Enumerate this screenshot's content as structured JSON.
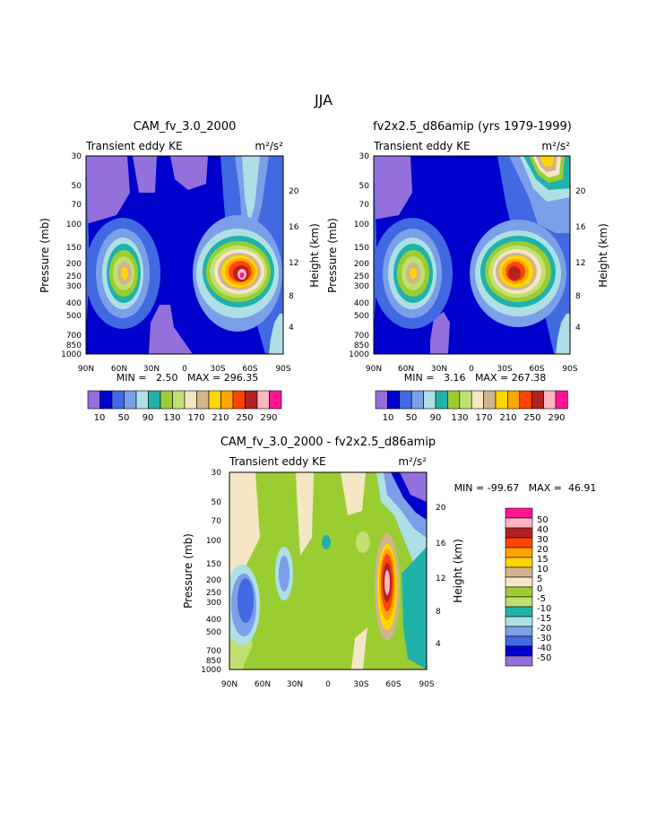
{
  "page_title": "JJA",
  "colors": {
    "main_scale": [
      "#9370db",
      "#0000cd",
      "#4169e1",
      "#7b9fe8",
      "#aedfe5",
      "#20b2aa",
      "#9acd32",
      "#c0e070",
      "#f5e6c4",
      "#d2b48c",
      "#ffd700",
      "#ffa500",
      "#ff4500",
      "#b22222",
      "#ffb6c1",
      "#ff1493"
    ],
    "diff_scale": [
      "#ff1493",
      "#ffb6c1",
      "#b22222",
      "#ff4500",
      "#ffa500",
      "#ffd700",
      "#d2b48c",
      "#f5e6c4",
      "#9acd32",
      "#c0e070",
      "#20b2aa",
      "#aedfe5",
      "#7b9fe8",
      "#4169e1",
      "#0000cd",
      "#9370db"
    ]
  },
  "chart_data": [
    {
      "type": "heatmap",
      "title": "CAM_fv_3.0_2000",
      "subtitle": "Transient eddy KE",
      "units": "m²/s²",
      "xlabel": "",
      "ylabel": "Pressure (mb)",
      "ylabel_right": "Height (km)",
      "x_ticks": [
        "90N",
        "60N",
        "30N",
        "0",
        "30S",
        "60S",
        "90S"
      ],
      "y_ticks": [
        "30",
        "50",
        "70",
        "100",
        "150",
        "200",
        "250",
        "300",
        "400",
        "500",
        "700",
        "850",
        "1000"
      ],
      "y_right_ticks": [
        "20",
        "16",
        "12",
        "8",
        "4"
      ],
      "stats": "MIN =   2.50   MAX = 296.35",
      "colorbar_labels": [
        "10",
        "50",
        "90",
        "130",
        "170",
        "210",
        "250",
        "290"
      ]
    },
    {
      "type": "heatmap",
      "title": "fv2x2.5_d86amip (yrs 1979-1999)",
      "subtitle": "Transient eddy KE",
      "units": "m²/s²",
      "xlabel": "",
      "ylabel": "Pressure (mb)",
      "ylabel_right": "Height (km)",
      "x_ticks": [
        "90N",
        "60N",
        "30N",
        "0",
        "30S",
        "60S",
        "90S"
      ],
      "y_ticks": [
        "30",
        "50",
        "70",
        "100",
        "150",
        "200",
        "250",
        "300",
        "400",
        "500",
        "700",
        "850",
        "1000"
      ],
      "y_right_ticks": [
        "20",
        "16",
        "12",
        "8",
        "4"
      ],
      "stats": "MIN =   3.16   MAX = 267.38",
      "colorbar_labels": [
        "10",
        "50",
        "90",
        "130",
        "170",
        "210",
        "250",
        "290"
      ]
    },
    {
      "type": "heatmap",
      "title": "CAM_fv_3.0_2000 - fv2x2.5_d86amip",
      "subtitle": "Transient eddy KE",
      "units": "m²/s²",
      "xlabel": "",
      "ylabel": "Pressure (mb)",
      "ylabel_right": "Height (km)",
      "x_ticks": [
        "90N",
        "60N",
        "30N",
        "0",
        "30S",
        "60S",
        "90S"
      ],
      "y_ticks": [
        "30",
        "50",
        "70",
        "100",
        "150",
        "200",
        "250",
        "300",
        "400",
        "500",
        "700",
        "850",
        "1000"
      ],
      "y_right_ticks": [
        "20",
        "16",
        "12",
        "8",
        "4"
      ],
      "stats": "MIN = -99.67   MAX =  46.91",
      "colorbar_labels": [
        "50",
        "40",
        "30",
        "20",
        "15",
        "10",
        "5",
        "0",
        "-5",
        "-10",
        "-15",
        "-20",
        "-30",
        "-40",
        "-50"
      ]
    }
  ]
}
